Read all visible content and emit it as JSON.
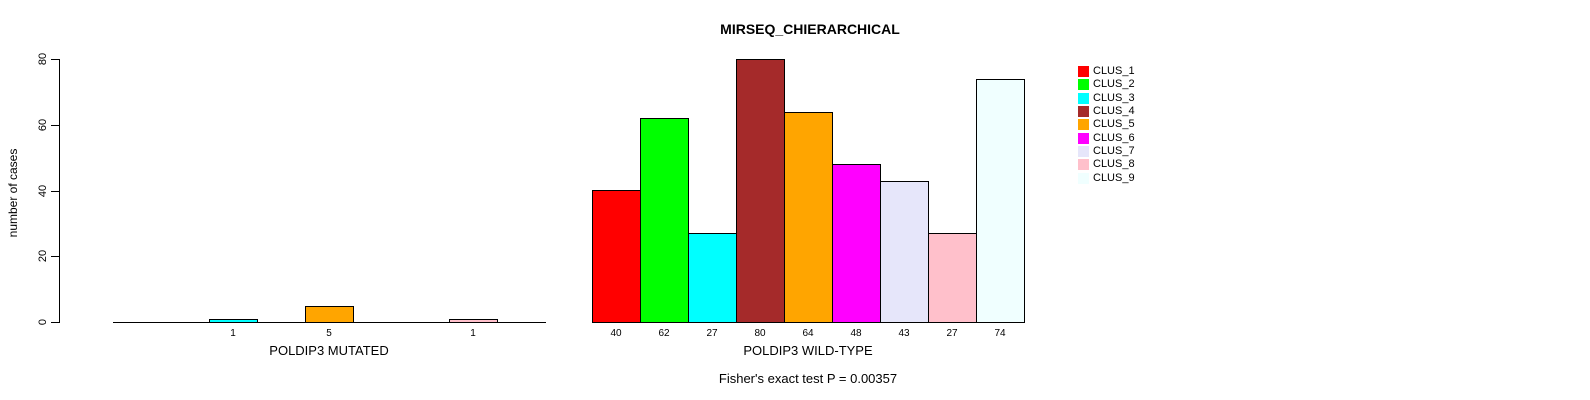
{
  "chart_data": {
    "type": "bar",
    "title": "MIRSEQ_CHIERARCHICAL",
    "ylabel": "number of cases",
    "xlabel": "",
    "ylim": [
      0,
      80
    ],
    "yticks": [
      0,
      20,
      40,
      60,
      80
    ],
    "grid": false,
    "legend_position": "right",
    "categories": [
      "CLUS_1",
      "CLUS_2",
      "CLUS_3",
      "CLUS_4",
      "CLUS_5",
      "CLUS_6",
      "CLUS_7",
      "CLUS_8",
      "CLUS_9"
    ],
    "colors": [
      "#FF0000",
      "#00FF00",
      "#00FFFF",
      "#A52A2A",
      "#FFA500",
      "#FF00FF",
      "#E6E6FA",
      "#FFC0CB",
      "#F0FFFF"
    ],
    "groups": [
      {
        "label": "POLDIP3 MUTATED",
        "values": [
          0,
          0,
          1,
          0,
          5,
          0,
          0,
          1,
          0
        ]
      },
      {
        "label": "POLDIP3 WILD-TYPE",
        "values": [
          40,
          62,
          27,
          80,
          64,
          48,
          43,
          27,
          74
        ]
      }
    ],
    "annotation": "Fisher's exact test P = 0.00357"
  }
}
